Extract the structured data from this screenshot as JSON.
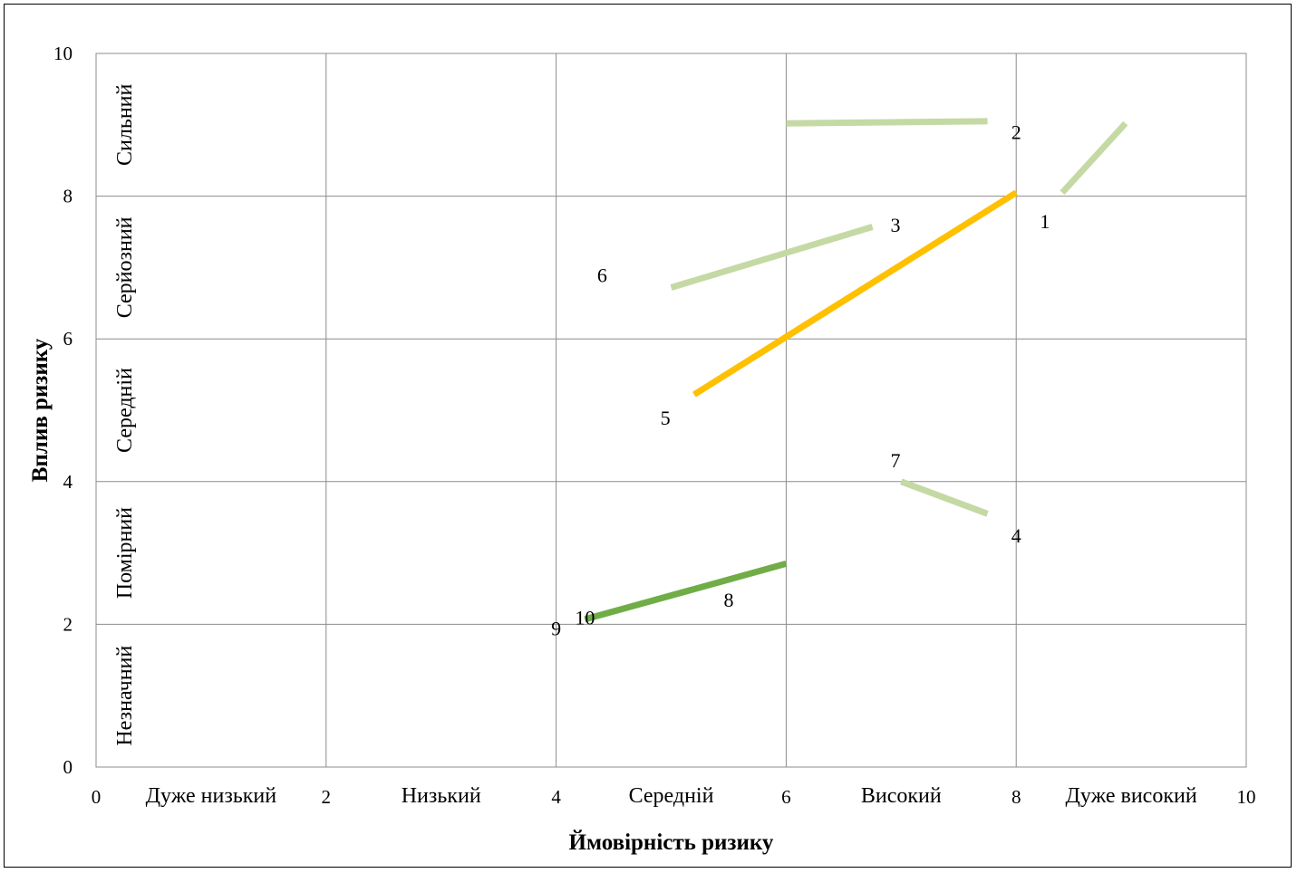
{
  "chart_data": {
    "type": "line",
    "xlabel": "Ймовірність ризику",
    "ylabel": "Вплив ризику",
    "xlim": [
      0,
      10
    ],
    "ylim": [
      0,
      10
    ],
    "x_ticks": [
      0,
      2,
      4,
      6,
      8,
      10
    ],
    "y_ticks": [
      0,
      2,
      4,
      6,
      8,
      10
    ],
    "grid": true,
    "x_categories": [
      {
        "label": "Дуже низький",
        "x": 1
      },
      {
        "label": "Низький",
        "x": 3
      },
      {
        "label": "Середній",
        "x": 5
      },
      {
        "label": "Високий",
        "x": 7
      },
      {
        "label": "Дуже високий",
        "x": 9
      }
    ],
    "y_categories": [
      {
        "label": "Незначний",
        "y": 1
      },
      {
        "label": "Помірний",
        "y": 3
      },
      {
        "label": "Середній",
        "y": 5
      },
      {
        "label": "Серйозний",
        "y": 7
      },
      {
        "label": "Сильний",
        "y": 9
      }
    ],
    "series": [
      {
        "color": "#c5d9a4",
        "width": 7,
        "points": [
          [
            6.0,
            9.02
          ],
          [
            7.75,
            9.05
          ]
        ]
      },
      {
        "color": "#c5d9a4",
        "width": 7,
        "points": [
          [
            8.4,
            8.05
          ],
          [
            8.95,
            9.02
          ]
        ]
      },
      {
        "color": "#c5d9a4",
        "width": 7,
        "points": [
          [
            5.0,
            6.72
          ],
          [
            6.75,
            7.57
          ]
        ]
      },
      {
        "color": "#c5d9a4",
        "width": 7,
        "points": [
          [
            7.0,
            4.0
          ],
          [
            7.75,
            3.55
          ]
        ]
      },
      {
        "color": "#ffc000",
        "width": 7,
        "points": [
          [
            5.2,
            5.22
          ],
          [
            8.0,
            8.05
          ]
        ]
      },
      {
        "color": "#70ad47",
        "width": 7,
        "points": [
          [
            4.25,
            2.07
          ],
          [
            6.0,
            2.85
          ]
        ]
      }
    ],
    "point_labels": [
      {
        "text": "1",
        "x": 8.25,
        "y": 7.65
      },
      {
        "text": "2",
        "x": 8.0,
        "y": 8.9
      },
      {
        "text": "3",
        "x": 6.95,
        "y": 7.6
      },
      {
        "text": "4",
        "x": 8.0,
        "y": 3.25
      },
      {
        "text": "5",
        "x": 4.95,
        "y": 4.9
      },
      {
        "text": "6",
        "x": 4.4,
        "y": 6.9
      },
      {
        "text": "7",
        "x": 6.95,
        "y": 4.3
      },
      {
        "text": "8",
        "x": 5.5,
        "y": 2.35
      },
      {
        "text": "9",
        "x": 4.0,
        "y": 1.95
      },
      {
        "text": "10",
        "x": 4.25,
        "y": 2.1
      }
    ]
  }
}
